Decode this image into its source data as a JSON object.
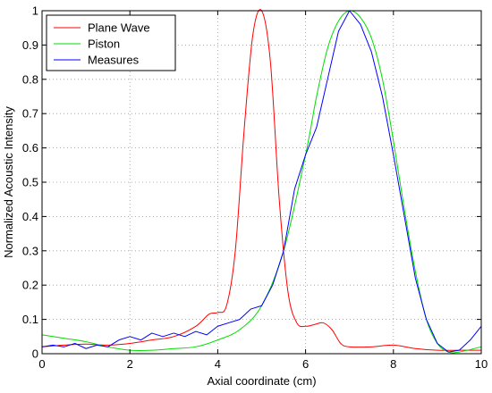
{
  "chart_data": {
    "type": "line",
    "title": "",
    "xlabel": "Axial coordinate (cm)",
    "ylabel": "Normalized Acoustic Intensity",
    "xlim": [
      0,
      10
    ],
    "ylim": [
      0,
      1
    ],
    "xticks": [
      0,
      2,
      4,
      6,
      8,
      10
    ],
    "xtick_labels": [
      "0",
      "2",
      "4",
      "6",
      "8",
      "10"
    ],
    "yticks": [
      0,
      0.1,
      0.2,
      0.3,
      0.4,
      0.5,
      0.6,
      0.7,
      0.8,
      0.9,
      1
    ],
    "ytick_labels": [
      "0",
      "0.1",
      "0.2",
      "0.3",
      "0.4",
      "0.5",
      "0.6",
      "0.7",
      "0.8",
      "0.9",
      "1"
    ],
    "grid": true,
    "legend_position": "top-left",
    "series": [
      {
        "name": "Plane Wave",
        "color": "#ff0000",
        "x": [
          0,
          0.5,
          1,
          1.5,
          2,
          2.5,
          3,
          3.5,
          3.8,
          4,
          4.2,
          4.4,
          4.6,
          4.8,
          5,
          5.2,
          5.4,
          5.6,
          5.8,
          6,
          6.2,
          6.4,
          6.6,
          6.8,
          7,
          7.5,
          8,
          8.5,
          9,
          9.5,
          10
        ],
        "y": [
          0.02,
          0.025,
          0.028,
          0.025,
          0.03,
          0.04,
          0.05,
          0.08,
          0.115,
          0.12,
          0.14,
          0.3,
          0.65,
          0.93,
          1,
          0.85,
          0.45,
          0.18,
          0.09,
          0.08,
          0.085,
          0.09,
          0.07,
          0.03,
          0.02,
          0.02,
          0.025,
          0.015,
          0.01,
          0.01,
          0.01
        ]
      },
      {
        "name": "Piston",
        "color": "#00dd00",
        "x": [
          0,
          0.5,
          1,
          1.5,
          2,
          2.5,
          3,
          3.5,
          4,
          4.5,
          5,
          5.5,
          6,
          6.25,
          6.5,
          6.75,
          7,
          7.25,
          7.5,
          7.75,
          8,
          8.25,
          8.5,
          8.75,
          9,
          9.25,
          9.5,
          10
        ],
        "y": [
          0.055,
          0.045,
          0.035,
          0.02,
          0.01,
          0.01,
          0.015,
          0.02,
          0.04,
          0.07,
          0.14,
          0.3,
          0.58,
          0.75,
          0.89,
          0.97,
          1,
          0.98,
          0.92,
          0.8,
          0.62,
          0.42,
          0.24,
          0.1,
          0.03,
          0.005,
          0.005,
          0.02
        ]
      },
      {
        "name": "Measures",
        "color": "#0000ff",
        "x": [
          0,
          0.25,
          0.5,
          0.75,
          1,
          1.25,
          1.5,
          1.75,
          2,
          2.25,
          2.5,
          2.75,
          3,
          3.25,
          3.5,
          3.75,
          4,
          4.25,
          4.5,
          4.75,
          5,
          5.25,
          5.5,
          5.75,
          6,
          6.25,
          6.5,
          6.75,
          7,
          7.25,
          7.5,
          7.75,
          8,
          8.25,
          8.5,
          8.75,
          9,
          9.25,
          9.5,
          9.75,
          10
        ],
        "y": [
          0.02,
          0.025,
          0.02,
          0.03,
          0.015,
          0.025,
          0.02,
          0.04,
          0.05,
          0.04,
          0.06,
          0.05,
          0.06,
          0.05,
          0.065,
          0.055,
          0.08,
          0.09,
          0.1,
          0.13,
          0.14,
          0.2,
          0.3,
          0.48,
          0.58,
          0.66,
          0.8,
          0.94,
          1,
          0.96,
          0.88,
          0.75,
          0.58,
          0.4,
          0.22,
          0.1,
          0.03,
          0.005,
          0.01,
          0.04,
          0.08
        ]
      }
    ]
  }
}
